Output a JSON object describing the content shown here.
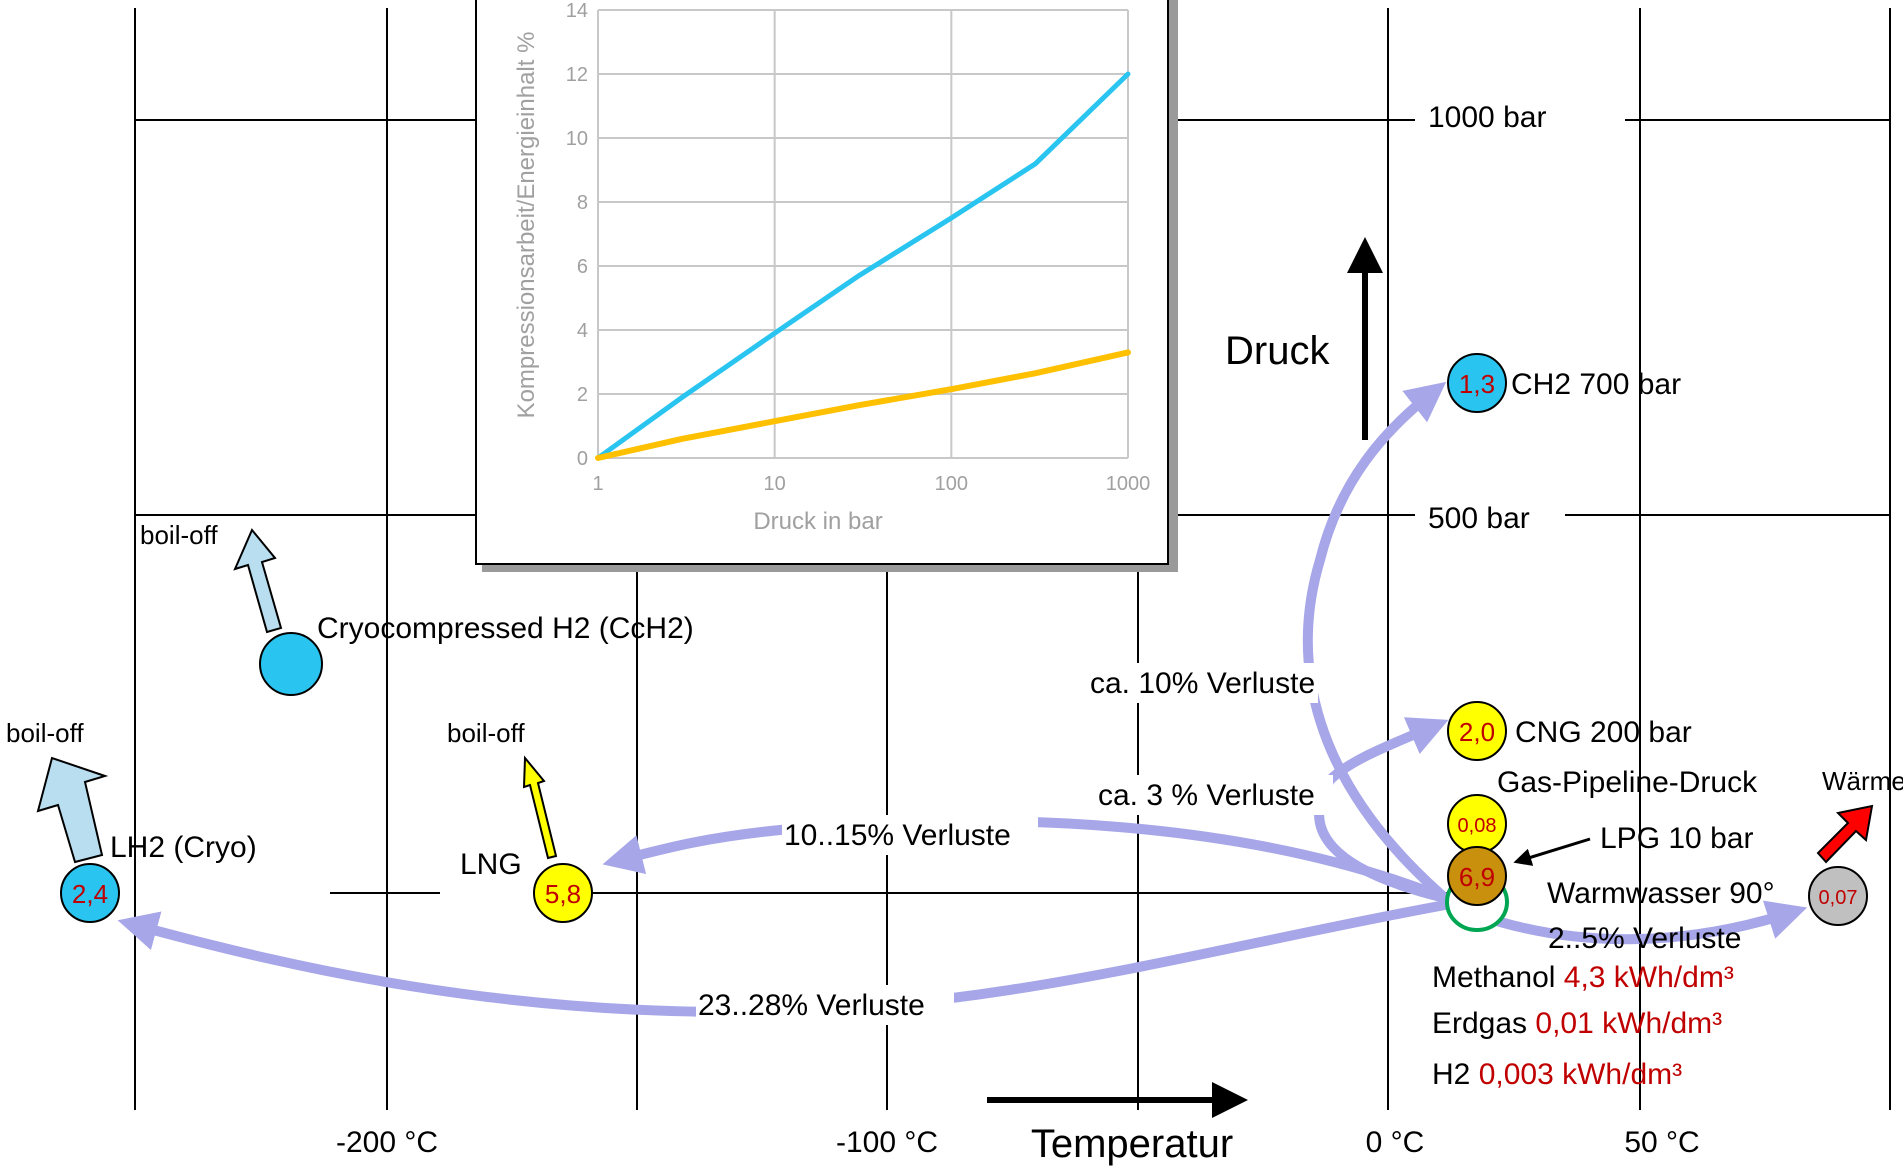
{
  "temperature_axis": {
    "ticks": [
      "-200 °C",
      "-100 °C",
      "0 °C",
      "50 °C"
    ],
    "label": "Temperatur"
  },
  "pressure_axis": {
    "ticks": [
      "1000 bar",
      "500 bar"
    ],
    "label": "Druck"
  },
  "storage_states": [
    {
      "label": "CH2 700 bar",
      "value": "1,3",
      "fill": "#29c5f0"
    },
    {
      "label": "CNG 200 bar",
      "value": "2,0",
      "fill": "#ffff00"
    },
    {
      "label": "Gas-Pipeline-Druck",
      "value": "0,08",
      "fill": "#ffff00"
    },
    {
      "label": "LPG 10 bar",
      "value": "6,9",
      "fill": "#c8900c"
    },
    {
      "label": "Warmwasser 90°",
      "value": "0,07",
      "fill": "#c0c0c0"
    },
    {
      "label": "LH2 (Cryo)",
      "value": "2,4",
      "fill": "#29c5f0"
    },
    {
      "label": "LNG",
      "value": "5,8",
      "fill": "#ffff00"
    },
    {
      "label": "Cryocompressed H2 (CcH2)",
      "value": "",
      "fill": "#29c5f0"
    }
  ],
  "boil_off": [
    "boil-off",
    "boil-off",
    "boil-off"
  ],
  "waerme": "Wärme",
  "losses": {
    "ch2": "ca. 10% Verluste",
    "cng": "ca. 3 % Verluste",
    "lng": "10..15% Verluste",
    "lh2": "23..28% Verluste",
    "warm": "2..5% Verluste"
  },
  "energy_densities": [
    {
      "name": "Methanol",
      "value": "4,3 kWh/dm³"
    },
    {
      "name": "Erdgas",
      "value": "0,01 kWh/dm³"
    },
    {
      "name": "H2",
      "value": "0,003 kWh/dm³"
    }
  ],
  "colors": {
    "arrow": "#a6a6e8",
    "red_value": "#c00000",
    "h2": "#29c5f0",
    "yellow": "#ffff00",
    "lpg": "#c8900c",
    "grey": "#c0c0c0",
    "boiloff_blue": "#b9def0",
    "warm_red": "#ff0000",
    "curve_h2": "#29c5f0",
    "curve_ng": "#ffc000",
    "inset_grid": "#c8c8c8"
  },
  "chart_data": {
    "type": "line",
    "xlabel": "Druck in bar",
    "ylabel": "Kompressionsarbeit/Energieinhalt %",
    "x_scale": "log",
    "x_ticks": [
      "1",
      "10",
      "100",
      "1000"
    ],
    "y_ticks": [
      "0",
      "2",
      "4",
      "6",
      "8",
      "10",
      "12",
      "14"
    ],
    "xlim": [
      1,
      1000
    ],
    "ylim": [
      0,
      14
    ],
    "grid": true,
    "series": [
      {
        "color": "#29c5f0",
        "x": [
          1,
          3,
          10,
          30,
          100,
          300,
          1000
        ],
        "y": [
          0,
          1.9,
          3.9,
          5.7,
          7.5,
          9.2,
          12
        ]
      },
      {
        "color": "#ffc000",
        "x": [
          1,
          3,
          10,
          30,
          100,
          300,
          1000
        ],
        "y": [
          0,
          0.6,
          1.15,
          1.65,
          2.15,
          2.65,
          3.3
        ]
      }
    ]
  }
}
